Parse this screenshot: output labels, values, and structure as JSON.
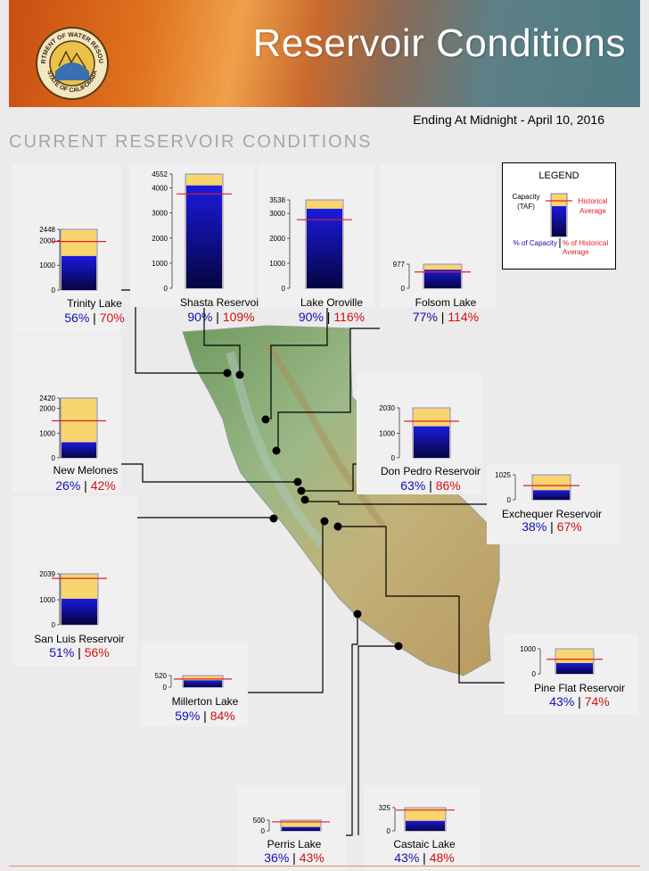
{
  "header": {
    "title": "Reservoir Conditions",
    "seal_text_top": "DEPARTMENT OF WATER RESOURCES",
    "seal_text_bottom": "STATE OF CALIFORNIA"
  },
  "date_line": "Ending At Midnight - April 10, 2016",
  "section_title": "CURRENT RESERVOIR CONDITIONS",
  "legend": {
    "title": "LEGEND",
    "capacity_label": "Capacity",
    "taf_label": "(TAF)",
    "historical_label_1": "Historical",
    "historical_label_2": "Average",
    "pct_capacity_label": "% of Capacity",
    "pct_historical_label_1": "% of Historical",
    "pct_historical_label_2": "Average"
  },
  "colors": {
    "capacity_fill": "#f8d56e",
    "storage_top": "#1a1ae0",
    "storage_bottom": "#050540",
    "historical_line": "#e02020",
    "capacity_pct": "#1010b0",
    "historical_pct": "#d01010"
  },
  "chart_data": {
    "type": "bar",
    "units": "TAF",
    "reservoirs": [
      {
        "name": "Trinity Lake",
        "capacity": 2448,
        "ticks": [
          "2448",
          "2000",
          "1000",
          "0"
        ],
        "pct_capacity": 56,
        "pct_historical": 70,
        "pct_capacity_text": "56%",
        "pct_historical_text": "70%"
      },
      {
        "name": "Shasta Reservoir",
        "capacity": 4552,
        "ticks": [
          "4552",
          "4000",
          "3000",
          "2000",
          "1000",
          "0"
        ],
        "pct_capacity": 90,
        "pct_historical": 109,
        "pct_capacity_text": "90%",
        "pct_historical_text": "109%"
      },
      {
        "name": "Lake Oroville",
        "capacity": 3538,
        "ticks": [
          "3538",
          "3000",
          "2000",
          "1000",
          "0"
        ],
        "pct_capacity": 90,
        "pct_historical": 116,
        "pct_capacity_text": "90%",
        "pct_historical_text": "116%"
      },
      {
        "name": "Folsom Lake",
        "capacity": 977,
        "ticks": [
          "977",
          "0"
        ],
        "pct_capacity": 77,
        "pct_historical": 114,
        "pct_capacity_text": "77%",
        "pct_historical_text": "114%"
      },
      {
        "name": "New Melones",
        "capacity": 2420,
        "ticks": [
          "2420",
          "2000",
          "1000",
          "0"
        ],
        "pct_capacity": 26,
        "pct_historical": 42,
        "pct_capacity_text": "26%",
        "pct_historical_text": "42%"
      },
      {
        "name": "Don Pedro Reservoir",
        "capacity": 2030,
        "ticks": [
          "2030",
          "1000",
          "0"
        ],
        "pct_capacity": 63,
        "pct_historical": 86,
        "pct_capacity_text": "63%",
        "pct_historical_text": "86%"
      },
      {
        "name": "Exchequer Reservoir",
        "capacity": 1025,
        "ticks": [
          "1025",
          "0"
        ],
        "pct_capacity": 38,
        "pct_historical": 67,
        "pct_capacity_text": "38%",
        "pct_historical_text": "67%"
      },
      {
        "name": "San Luis Reservoir",
        "capacity": 2039,
        "ticks": [
          "2039",
          "1000",
          "0"
        ],
        "pct_capacity": 51,
        "pct_historical": 56,
        "pct_capacity_text": "51%",
        "pct_historical_text": "56%"
      },
      {
        "name": "Millerton Lake",
        "capacity": 520,
        "ticks": [
          "520",
          "0"
        ],
        "pct_capacity": 59,
        "pct_historical": 84,
        "pct_capacity_text": "59%",
        "pct_historical_text": "84%"
      },
      {
        "name": "Pine Flat Reservoir",
        "capacity": 1000,
        "ticks": [
          "1000",
          "0"
        ],
        "pct_capacity": 43,
        "pct_historical": 74,
        "pct_capacity_text": "43%",
        "pct_historical_text": "74%"
      },
      {
        "name": "Perris Lake",
        "capacity": 500,
        "ticks": [
          "500",
          "0"
        ],
        "pct_capacity": 36,
        "pct_historical": 43,
        "pct_capacity_text": "36%",
        "pct_historical_text": "43%"
      },
      {
        "name": "Castaic Lake",
        "capacity": 325,
        "ticks": [
          "325",
          "0"
        ],
        "pct_capacity": 43,
        "pct_historical": 48,
        "pct_capacity_text": "43%",
        "pct_historical_text": "48%"
      }
    ]
  }
}
